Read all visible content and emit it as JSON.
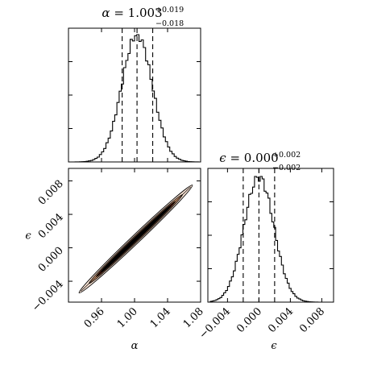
{
  "chart_data": [
    {
      "panel": "alpha-marginal",
      "type": "histogram",
      "title": {
        "param": "α",
        "value": "1.003",
        "plus": "+0.019",
        "minus": "−0.018"
      },
      "quantiles": [
        0.985,
        1.003,
        1.022
      ],
      "center": 1.003,
      "sigma": 0.0185,
      "xlim": [
        0.92,
        1.08
      ],
      "shared_x_ticks": [
        "0.96",
        "1.00",
        "1.04",
        "1.08"
      ]
    },
    {
      "panel": "joint-alpha-epsilon",
      "type": "heatmap",
      "xlabel": "α",
      "ylabel": "ϵ",
      "xlim": [
        0.92,
        1.08
      ],
      "ylim": [
        -0.0065,
        0.0095
      ],
      "x_ticks": [
        {
          "value": 0.96,
          "label": "0.96"
        },
        {
          "value": 1.0,
          "label": "1.00"
        },
        {
          "value": 1.04,
          "label": "1.04"
        },
        {
          "value": 1.08,
          "label": "1.08"
        }
      ],
      "y_ticks": [
        {
          "value": -0.004,
          "label": "−0.004"
        },
        {
          "value": 0.0,
          "label": "0.000"
        },
        {
          "value": 0.004,
          "label": "0.004"
        },
        {
          "value": 0.008,
          "label": "0.008"
        }
      ],
      "correlation_line": {
        "x": [
          0.935,
          1.068
        ],
        "y": [
          -0.0052,
          0.0073
        ]
      },
      "contour_colors": [
        "#fbe5d6",
        "#f4b183",
        "#b5260b",
        "#000000"
      ]
    },
    {
      "panel": "epsilon-marginal",
      "type": "histogram",
      "title": {
        "param": "ϵ",
        "value": "0.000",
        "plus": "+0.002",
        "minus": "−0.002"
      },
      "xlabel": "ϵ",
      "quantiles": [
        -0.002,
        0.0,
        0.002
      ],
      "center": 0.0,
      "sigma": 0.0019,
      "xlim": [
        -0.0065,
        0.0095
      ],
      "x_ticks": [
        {
          "value": -0.004,
          "label": "−0.004"
        },
        {
          "value": 0.0,
          "label": "0.000"
        },
        {
          "value": 0.004,
          "label": "0.004"
        },
        {
          "value": 0.008,
          "label": "0.008"
        }
      ]
    }
  ]
}
